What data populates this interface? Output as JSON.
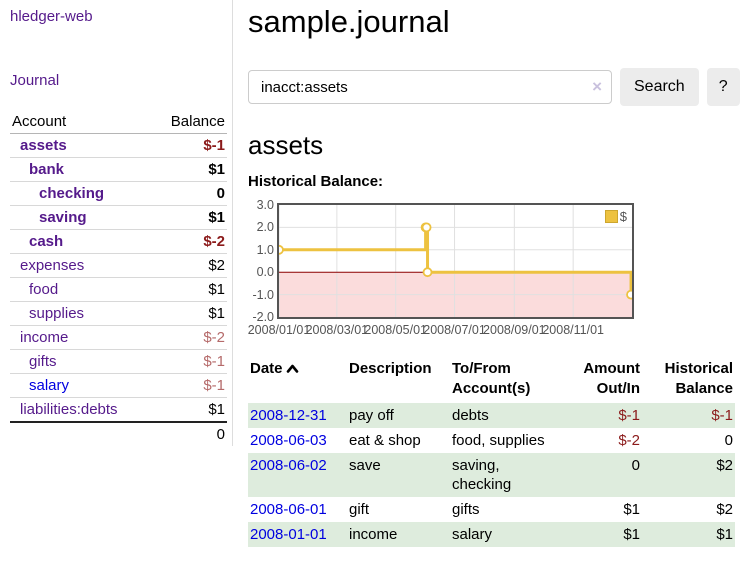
{
  "colors": {
    "purple": "#551a8b",
    "link_blue": "#0000e0",
    "negative": "#8b1a1a",
    "negative_soft": "#b56a6a",
    "row_green": "#deecdd",
    "button_bg": "#ececec",
    "border_gray": "#dddddd",
    "chart_yellow": "#edc240",
    "chart_negative_fill": "#fbdcdc",
    "chart_zero_line": "#8b0000",
    "chart_border": "#545454",
    "chart_grid": "#e0e0e0",
    "clear_icon_color": "#c9c1de"
  },
  "app": {
    "title": "hledger-web"
  },
  "sidebar": {
    "journal_link": "Journal",
    "table": {
      "headers": [
        "Account",
        "Balance"
      ],
      "rows": [
        {
          "label": "assets",
          "balance": "$-1",
          "indent": 1,
          "bold": true,
          "label_color": "purple",
          "balance_color": "negative"
        },
        {
          "label": "bank",
          "balance": "$1",
          "indent": 2,
          "bold": true,
          "label_color": "purple",
          "balance_color": "default"
        },
        {
          "label": "checking",
          "balance": "0",
          "indent": 3,
          "bold": true,
          "label_color": "purple",
          "balance_color": "default"
        },
        {
          "label": "saving",
          "balance": "$1",
          "indent": 3,
          "bold": true,
          "label_color": "purple",
          "balance_color": "default"
        },
        {
          "label": "cash",
          "balance": "$-2",
          "indent": 2,
          "bold": true,
          "label_color": "purple",
          "balance_color": "negative"
        },
        {
          "label": "expenses",
          "balance": "$2",
          "indent": 1,
          "bold": false,
          "label_color": "purple",
          "balance_color": "default"
        },
        {
          "label": "food",
          "balance": "$1",
          "indent": 2,
          "bold": false,
          "label_color": "purple",
          "balance_color": "default"
        },
        {
          "label": "supplies",
          "balance": "$1",
          "indent": 2,
          "bold": false,
          "label_color": "purple",
          "balance_color": "default"
        },
        {
          "label": "income",
          "balance": "$-2",
          "indent": 1,
          "bold": false,
          "label_color": "purple",
          "balance_color": "negative-soft"
        },
        {
          "label": "gifts",
          "balance": "$-1",
          "indent": 2,
          "bold": false,
          "label_color": "purple",
          "balance_color": "negative-soft"
        },
        {
          "label": "salary",
          "balance": "$-1",
          "indent": 2,
          "bold": false,
          "label_color": "blue",
          "balance_color": "negative-soft"
        },
        {
          "label": "liabilities:debts",
          "balance": "$1",
          "indent": 1,
          "bold": false,
          "label_color": "purple",
          "balance_color": "default"
        }
      ],
      "total": "0"
    }
  },
  "main": {
    "title": "sample.journal",
    "search": {
      "value": "inacct:assets",
      "clear_icon": "×",
      "search_button": "Search",
      "help_button": "?"
    },
    "account_heading": "assets"
  },
  "chart_data": {
    "type": "line",
    "title": "Historical Balance:",
    "step": true,
    "series": [
      {
        "name": "$",
        "color": "#edc240",
        "points": [
          [
            "2008-01-01",
            1
          ],
          [
            "2008-06-01",
            2
          ],
          [
            "2008-06-02",
            2
          ],
          [
            "2008-06-03",
            0
          ],
          [
            "2008-12-31",
            -1
          ]
        ]
      }
    ],
    "x_ticks": [
      "2008/01/01",
      "2008/03/01",
      "2008/05/01",
      "2008/07/01",
      "2008/09/01",
      "2008/11/01"
    ],
    "y_ticks": [
      3,
      2,
      1,
      0,
      -1,
      -2
    ],
    "ylim": [
      -2,
      3
    ],
    "xlim": [
      "2008-01-01",
      "2009-01-01"
    ],
    "grid": true,
    "grid_color": "#e0e0e0",
    "negative_fill": "#fbdcdc",
    "zero_line_color": "#8b0000",
    "legend": {
      "label": "$",
      "position": "top-right"
    }
  },
  "register": {
    "columns": [
      {
        "lines": [
          "Date"
        ],
        "sorted": "asc"
      },
      {
        "lines": [
          "Description"
        ]
      },
      {
        "lines": [
          "To/From",
          "Account(s)"
        ]
      },
      {
        "lines": [
          "Amount",
          "Out/In"
        ]
      },
      {
        "lines": [
          "Historical",
          "Balance"
        ]
      }
    ],
    "rows": [
      {
        "date": "2008-12-31",
        "description": "pay off",
        "accounts": "debts",
        "amount": "$-1",
        "amount_negative": true,
        "balance": "$-1",
        "balance_negative": true
      },
      {
        "date": "2008-06-03",
        "description": "eat & shop",
        "accounts": "food, supplies",
        "amount": "$-2",
        "amount_negative": true,
        "balance": "0",
        "balance_negative": false
      },
      {
        "date": "2008-06-02",
        "description": "save",
        "accounts": "saving, checking",
        "amount": "0",
        "amount_negative": false,
        "balance": "$2",
        "balance_negative": false
      },
      {
        "date": "2008-06-01",
        "description": "gift",
        "accounts": "gifts",
        "amount": "$1",
        "amount_negative": false,
        "balance": "$2",
        "balance_negative": false
      },
      {
        "date": "2008-01-01",
        "description": "income",
        "accounts": "salary",
        "amount": "$1",
        "amount_negative": false,
        "balance": "$1",
        "balance_negative": false
      }
    ]
  }
}
